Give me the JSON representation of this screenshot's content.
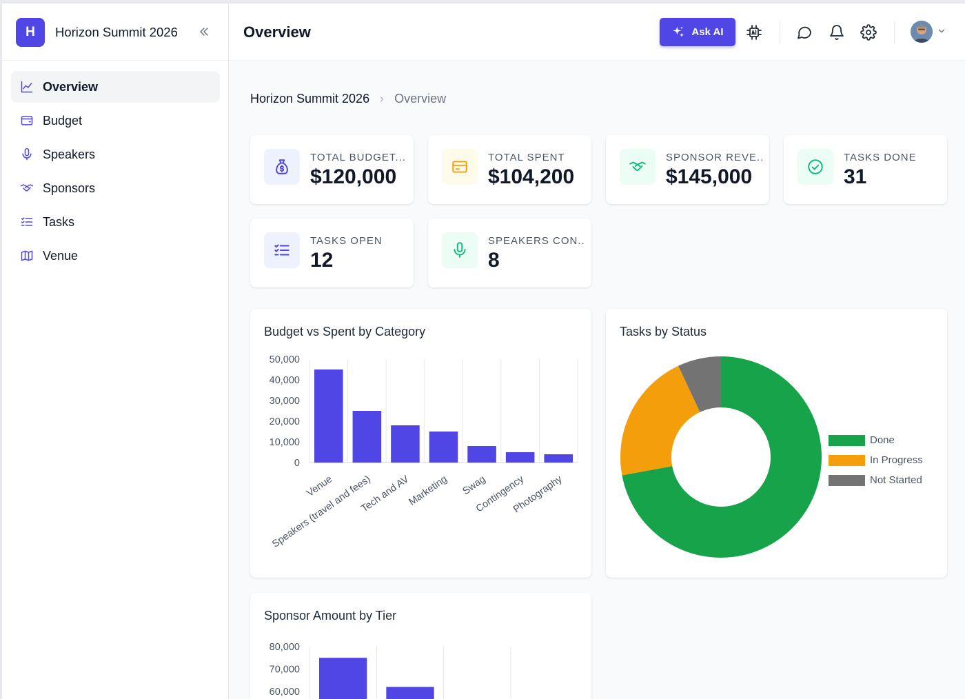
{
  "app": {
    "logo_letter": "H",
    "name": "Horizon Summit 2026"
  },
  "sidebar": {
    "items": [
      {
        "label": "Overview",
        "icon": "chart-line-icon",
        "active": true
      },
      {
        "label": "Budget",
        "icon": "wallet-icon",
        "active": false
      },
      {
        "label": "Speakers",
        "icon": "microphone-icon",
        "active": false
      },
      {
        "label": "Sponsors",
        "icon": "handshake-icon",
        "active": false
      },
      {
        "label": "Tasks",
        "icon": "list-check-icon",
        "active": false
      },
      {
        "label": "Venue",
        "icon": "map-icon",
        "active": false
      }
    ]
  },
  "header": {
    "title": "Overview",
    "ask_ai_label": "Ask AI",
    "icons": [
      "ai-chip-icon",
      "chat-icon",
      "bell-icon",
      "gear-icon",
      "avatar",
      "chevron-down-icon"
    ]
  },
  "breadcrumb": {
    "root": "Horizon Summit 2026",
    "current": "Overview"
  },
  "kpis": [
    {
      "label": "TOTAL BUDGET...",
      "value": "$120,000",
      "icon": "money-bag-icon",
      "color": "#4f46e5",
      "bg": "#eef2ff"
    },
    {
      "label": "TOTAL SPENT",
      "value": "$104,200",
      "icon": "credit-card-icon",
      "color": "#f59e0b",
      "bg": "#fffbeb"
    },
    {
      "label": "SPONSOR REVE...",
      "value": "$145,000",
      "icon": "handshake-icon",
      "color": "#10b981",
      "bg": "#ecfdf5"
    },
    {
      "label": "TASKS DONE",
      "value": "31",
      "icon": "check-circle-icon",
      "color": "#10b981",
      "bg": "#ecfdf5"
    },
    {
      "label": "TASKS OPEN",
      "value": "12",
      "icon": "list-check-icon",
      "color": "#4f46e5",
      "bg": "#eef2ff"
    },
    {
      "label": "SPEAKERS CON...",
      "value": "8",
      "icon": "microphone-icon",
      "color": "#10b981",
      "bg": "#ecfdf5"
    }
  ],
  "colors": {
    "accent": "#4f46e5",
    "done": "#16a34a",
    "in_progress": "#f59e0b",
    "not_started": "#737373"
  },
  "chart_data": [
    {
      "type": "bar",
      "title": "Budget vs Spent by Category",
      "categories": [
        "Venue",
        "Speakers (travel and fees)",
        "Tech and AV",
        "Marketing",
        "Swag",
        "Contingency",
        "Photography"
      ],
      "values": [
        45000,
        25000,
        18000,
        15000,
        8000,
        5000,
        4000
      ],
      "ylim": [
        0,
        50000
      ],
      "yticks": [
        "0",
        "10,000",
        "20,000",
        "30,000",
        "40,000",
        "50,000"
      ],
      "grid": "vertical",
      "color": "#4f46e5"
    },
    {
      "type": "pie",
      "title": "Tasks by Status",
      "labels": [
        "Done",
        "In Progress",
        "Not Started"
      ],
      "values": [
        31,
        9,
        3
      ],
      "colors": [
        "#16a34a",
        "#f59e0b",
        "#737373"
      ],
      "legend": "right"
    },
    {
      "type": "bar",
      "title": "Sponsor Amount by Tier",
      "yticks": [
        "60,000",
        "70,000",
        "80,000"
      ],
      "visible_ylim": [
        60000,
        80000
      ],
      "values": [
        75000,
        62000
      ],
      "color": "#4f46e5"
    }
  ]
}
